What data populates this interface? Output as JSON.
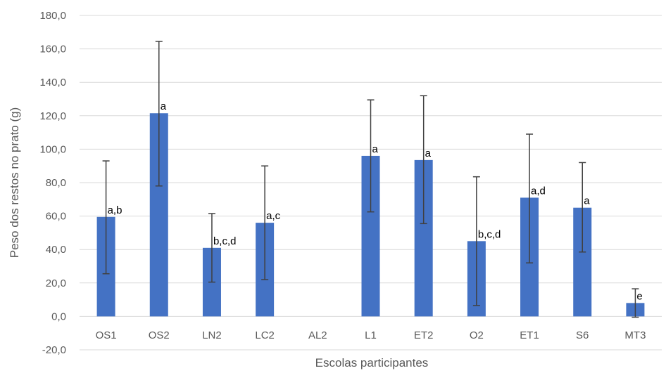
{
  "chart_data": {
    "type": "bar",
    "title": "",
    "xlabel": "Escolas participantes",
    "ylabel": "Peso dos restos no prato (g)",
    "ylim": [
      -20,
      180
    ],
    "yticks": [
      -20,
      0,
      20,
      40,
      60,
      80,
      100,
      120,
      140,
      160,
      180
    ],
    "ytick_labels": [
      "-20,0",
      "0,0",
      "20,0",
      "40,0",
      "60,0",
      "80,0",
      "100,0",
      "120,0",
      "140,0",
      "160,0",
      "180,0"
    ],
    "grid": true,
    "legend": "none",
    "categories": [
      "OS1",
      "OS2",
      "LN2",
      "LC2",
      "AL2",
      "L1",
      "ET2",
      "O2",
      "ET1",
      "S6",
      "MT3"
    ],
    "values": [
      59.5,
      121.5,
      41.0,
      56.0,
      0,
      96.0,
      93.5,
      45.0,
      71.0,
      65.0,
      8.0
    ],
    "error_low": [
      25.5,
      78.0,
      20.5,
      22.0,
      null,
      62.5,
      55.5,
      6.5,
      32.0,
      38.5,
      -0.5
    ],
    "error_high": [
      93.0,
      164.5,
      61.5,
      90.0,
      null,
      129.5,
      132.0,
      83.5,
      109.0,
      92.0,
      16.5
    ],
    "labels": [
      "a,b",
      "a",
      "b,c,d",
      "a,c",
      "",
      "a",
      "a",
      "b,c,d",
      "a,d",
      "a",
      "e"
    ],
    "colors": {
      "bar": "#4472C4",
      "grid": "#D9D9D9",
      "error": "#404040",
      "text": "#595959"
    }
  }
}
